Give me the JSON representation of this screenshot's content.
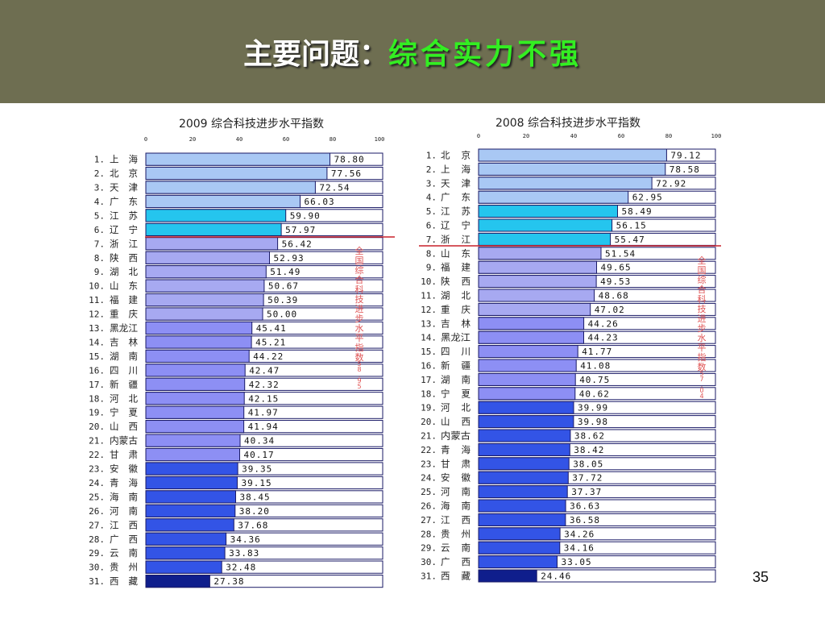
{
  "title": {
    "main": "主要问题：",
    "highlight": "综合实力不强"
  },
  "page_number": "35",
  "colors": {
    "light_blue": "#a9c8f4",
    "cyan": "#25c5ee",
    "lavender": "#a7a9f1",
    "periwinkle": "#8d8ff4",
    "royal_blue": "#3354e6",
    "dark_blue": "#0f1e8c",
    "red_line": "#c8202a"
  },
  "chart_data": [
    {
      "type": "bar",
      "title": "2009 综合科技进步水平指数",
      "ticks": [
        "0",
        "20",
        "40",
        "60",
        "80",
        "100"
      ],
      "xlim": [
        0,
        100
      ],
      "side_label": "全国综合科技进步水平指数58.95",
      "reference_line_after_rank": 6,
      "rows": [
        {
          "rank": "1.",
          "province": "上　海",
          "value": 78.8,
          "value_label": "78.80",
          "color": "light_blue"
        },
        {
          "rank": "2.",
          "province": "北　京",
          "value": 77.56,
          "value_label": "77.56",
          "color": "light_blue"
        },
        {
          "rank": "3.",
          "province": "天　津",
          "value": 72.54,
          "value_label": "72.54",
          "color": "light_blue"
        },
        {
          "rank": "4.",
          "province": "广　东",
          "value": 66.03,
          "value_label": "66.03",
          "color": "light_blue"
        },
        {
          "rank": "5.",
          "province": "江　苏",
          "value": 59.9,
          "value_label": "59.90",
          "color": "cyan"
        },
        {
          "rank": "6.",
          "province": "辽　宁",
          "value": 57.97,
          "value_label": "57.97",
          "color": "cyan"
        },
        {
          "rank": "7.",
          "province": "浙　江",
          "value": 56.42,
          "value_label": "56.42",
          "color": "lavender"
        },
        {
          "rank": "8.",
          "province": "陕　西",
          "value": 52.93,
          "value_label": "52.93",
          "color": "lavender"
        },
        {
          "rank": "9.",
          "province": "湖　北",
          "value": 51.49,
          "value_label": "51.49",
          "color": "lavender"
        },
        {
          "rank": "10.",
          "province": "山　东",
          "value": 50.67,
          "value_label": "50.67",
          "color": "lavender"
        },
        {
          "rank": "11.",
          "province": "福　建",
          "value": 50.39,
          "value_label": "50.39",
          "color": "lavender"
        },
        {
          "rank": "12.",
          "province": "重　庆",
          "value": 50.0,
          "value_label": "50.00",
          "color": "lavender"
        },
        {
          "rank": "13.",
          "province": "黑龙江",
          "value": 45.41,
          "value_label": "45.41",
          "color": "periwinkle"
        },
        {
          "rank": "14.",
          "province": "吉　林",
          "value": 45.21,
          "value_label": "45.21",
          "color": "periwinkle"
        },
        {
          "rank": "15.",
          "province": "湖　南",
          "value": 44.22,
          "value_label": "44.22",
          "color": "periwinkle"
        },
        {
          "rank": "16.",
          "province": "四　川",
          "value": 42.47,
          "value_label": "42.47",
          "color": "periwinkle"
        },
        {
          "rank": "17.",
          "province": "新　疆",
          "value": 42.32,
          "value_label": "42.32",
          "color": "periwinkle"
        },
        {
          "rank": "18.",
          "province": "河　北",
          "value": 42.15,
          "value_label": "42.15",
          "color": "periwinkle"
        },
        {
          "rank": "19.",
          "province": "宁　夏",
          "value": 41.97,
          "value_label": "41.97",
          "color": "periwinkle"
        },
        {
          "rank": "20.",
          "province": "山　西",
          "value": 41.94,
          "value_label": "41.94",
          "color": "periwinkle"
        },
        {
          "rank": "21.",
          "province": "内蒙古",
          "value": 40.34,
          "value_label": "40.34",
          "color": "periwinkle"
        },
        {
          "rank": "22.",
          "province": "甘　肃",
          "value": 40.17,
          "value_label": "40.17",
          "color": "periwinkle"
        },
        {
          "rank": "23.",
          "province": "安　徽",
          "value": 39.35,
          "value_label": "39.35",
          "color": "royal_blue"
        },
        {
          "rank": "24.",
          "province": "青　海",
          "value": 39.15,
          "value_label": "39.15",
          "color": "royal_blue"
        },
        {
          "rank": "25.",
          "province": "海　南",
          "value": 38.45,
          "value_label": "38.45",
          "color": "royal_blue"
        },
        {
          "rank": "26.",
          "province": "河　南",
          "value": 38.2,
          "value_label": "38.20",
          "color": "royal_blue"
        },
        {
          "rank": "27.",
          "province": "江　西",
          "value": 37.68,
          "value_label": "37.68",
          "color": "royal_blue"
        },
        {
          "rank": "28.",
          "province": "广　西",
          "value": 34.36,
          "value_label": "34.36",
          "color": "royal_blue"
        },
        {
          "rank": "29.",
          "province": "云　南",
          "value": 33.83,
          "value_label": "33.83",
          "color": "royal_blue"
        },
        {
          "rank": "30.",
          "province": "贵　州",
          "value": 32.48,
          "value_label": "32.48",
          "color": "royal_blue"
        },
        {
          "rank": "31.",
          "province": "西　藏",
          "value": 27.38,
          "value_label": "27.38",
          "color": "dark_blue"
        }
      ]
    },
    {
      "type": "bar",
      "title": "2008 综合科技进步水平指数",
      "ticks": [
        "0",
        "20",
        "40",
        "60",
        "80",
        "100"
      ],
      "xlim": [
        0,
        100
      ],
      "side_label": "全国综合科技进步水平指数57.04",
      "reference_line_after_rank": 7,
      "rows": [
        {
          "rank": "1.",
          "province": "北　京",
          "value": 79.12,
          "value_label": "79.12",
          "color": "light_blue"
        },
        {
          "rank": "2.",
          "province": "上　海",
          "value": 78.58,
          "value_label": "78.58",
          "color": "light_blue"
        },
        {
          "rank": "3.",
          "province": "天　津",
          "value": 72.92,
          "value_label": "72.92",
          "color": "light_blue"
        },
        {
          "rank": "4.",
          "province": "广　东",
          "value": 62.95,
          "value_label": "62.95",
          "color": "light_blue"
        },
        {
          "rank": "5.",
          "province": "江　苏",
          "value": 58.49,
          "value_label": "58.49",
          "color": "cyan"
        },
        {
          "rank": "6.",
          "province": "辽　宁",
          "value": 56.15,
          "value_label": "56.15",
          "color": "cyan"
        },
        {
          "rank": "7.",
          "province": "浙　江",
          "value": 55.47,
          "value_label": "55.47",
          "color": "cyan"
        },
        {
          "rank": "8.",
          "province": "山　东",
          "value": 51.54,
          "value_label": "51.54",
          "color": "lavender"
        },
        {
          "rank": "9.",
          "province": "福　建",
          "value": 49.65,
          "value_label": "49.65",
          "color": "lavender"
        },
        {
          "rank": "10.",
          "province": "陕　西",
          "value": 49.53,
          "value_label": "49.53",
          "color": "lavender"
        },
        {
          "rank": "11.",
          "province": "湖　北",
          "value": 48.68,
          "value_label": "48.68",
          "color": "lavender"
        },
        {
          "rank": "12.",
          "province": "重　庆",
          "value": 47.02,
          "value_label": "47.02",
          "color": "lavender"
        },
        {
          "rank": "13.",
          "province": "吉　林",
          "value": 44.26,
          "value_label": "44.26",
          "color": "periwinkle"
        },
        {
          "rank": "14.",
          "province": "黑龙江",
          "value": 44.23,
          "value_label": "44.23",
          "color": "periwinkle"
        },
        {
          "rank": "15.",
          "province": "四　川",
          "value": 41.77,
          "value_label": "41.77",
          "color": "periwinkle"
        },
        {
          "rank": "16.",
          "province": "新　疆",
          "value": 41.08,
          "value_label": "41.08",
          "color": "periwinkle"
        },
        {
          "rank": "17.",
          "province": "湖　南",
          "value": 40.75,
          "value_label": "40.75",
          "color": "periwinkle"
        },
        {
          "rank": "18.",
          "province": "宁　夏",
          "value": 40.62,
          "value_label": "40.62",
          "color": "periwinkle"
        },
        {
          "rank": "19.",
          "province": "河　北",
          "value": 39.99,
          "value_label": "39.99",
          "color": "royal_blue"
        },
        {
          "rank": "20.",
          "province": "山　西",
          "value": 39.98,
          "value_label": "39.98",
          "color": "royal_blue"
        },
        {
          "rank": "21.",
          "province": "内蒙古",
          "value": 38.62,
          "value_label": "38.62",
          "color": "royal_blue"
        },
        {
          "rank": "22.",
          "province": "青　海",
          "value": 38.42,
          "value_label": "38.42",
          "color": "royal_blue"
        },
        {
          "rank": "23.",
          "province": "甘　肃",
          "value": 38.05,
          "value_label": "38.05",
          "color": "royal_blue"
        },
        {
          "rank": "24.",
          "province": "安　徽",
          "value": 37.72,
          "value_label": "37.72",
          "color": "royal_blue"
        },
        {
          "rank": "25.",
          "province": "河　南",
          "value": 37.37,
          "value_label": "37.37",
          "color": "royal_blue"
        },
        {
          "rank": "26.",
          "province": "海　南",
          "value": 36.63,
          "value_label": "36.63",
          "color": "royal_blue"
        },
        {
          "rank": "27.",
          "province": "江　西",
          "value": 36.58,
          "value_label": "36.58",
          "color": "royal_blue"
        },
        {
          "rank": "28.",
          "province": "贵　州",
          "value": 34.26,
          "value_label": "34.26",
          "color": "royal_blue"
        },
        {
          "rank": "29.",
          "province": "云　南",
          "value": 34.16,
          "value_label": "34.16",
          "color": "royal_blue"
        },
        {
          "rank": "30.",
          "province": "广　西",
          "value": 33.05,
          "value_label": "33.05",
          "color": "royal_blue"
        },
        {
          "rank": "31.",
          "province": "西　藏",
          "value": 24.46,
          "value_label": "24.46",
          "color": "dark_blue"
        }
      ]
    }
  ]
}
